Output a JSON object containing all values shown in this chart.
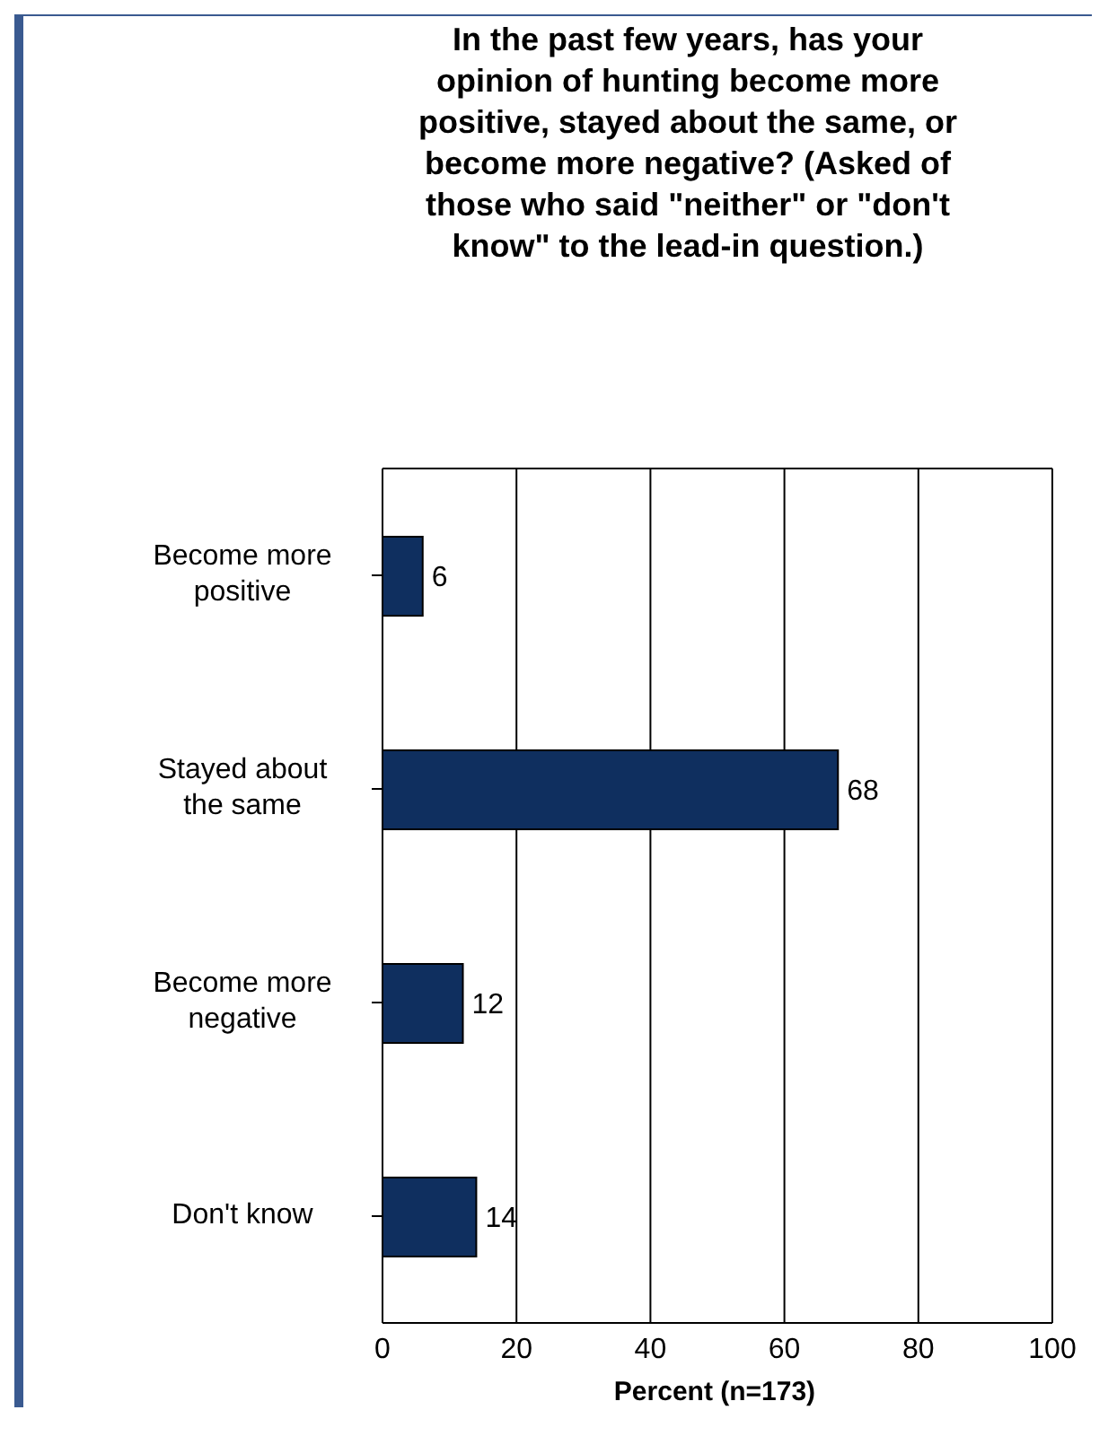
{
  "chart_data": {
    "type": "bar",
    "orientation": "horizontal",
    "title": "In the past few years, has your opinion of hunting become more positive, stayed about the same, or become more negative? (Asked of those who said \"neither\" or \"don't know\" to the lead-in question.)",
    "categories": [
      "Become more positive",
      "Stayed about the same",
      "Become more negative",
      "Don't know"
    ],
    "values": [
      6,
      68,
      12,
      14
    ],
    "color": "#0f2f5f",
    "data_labels": true,
    "xlabel": "Percent (n=173)",
    "xlim": [
      0,
      100
    ],
    "xticks": [
      0,
      20,
      40,
      60,
      80,
      100
    ],
    "grid": "x"
  }
}
